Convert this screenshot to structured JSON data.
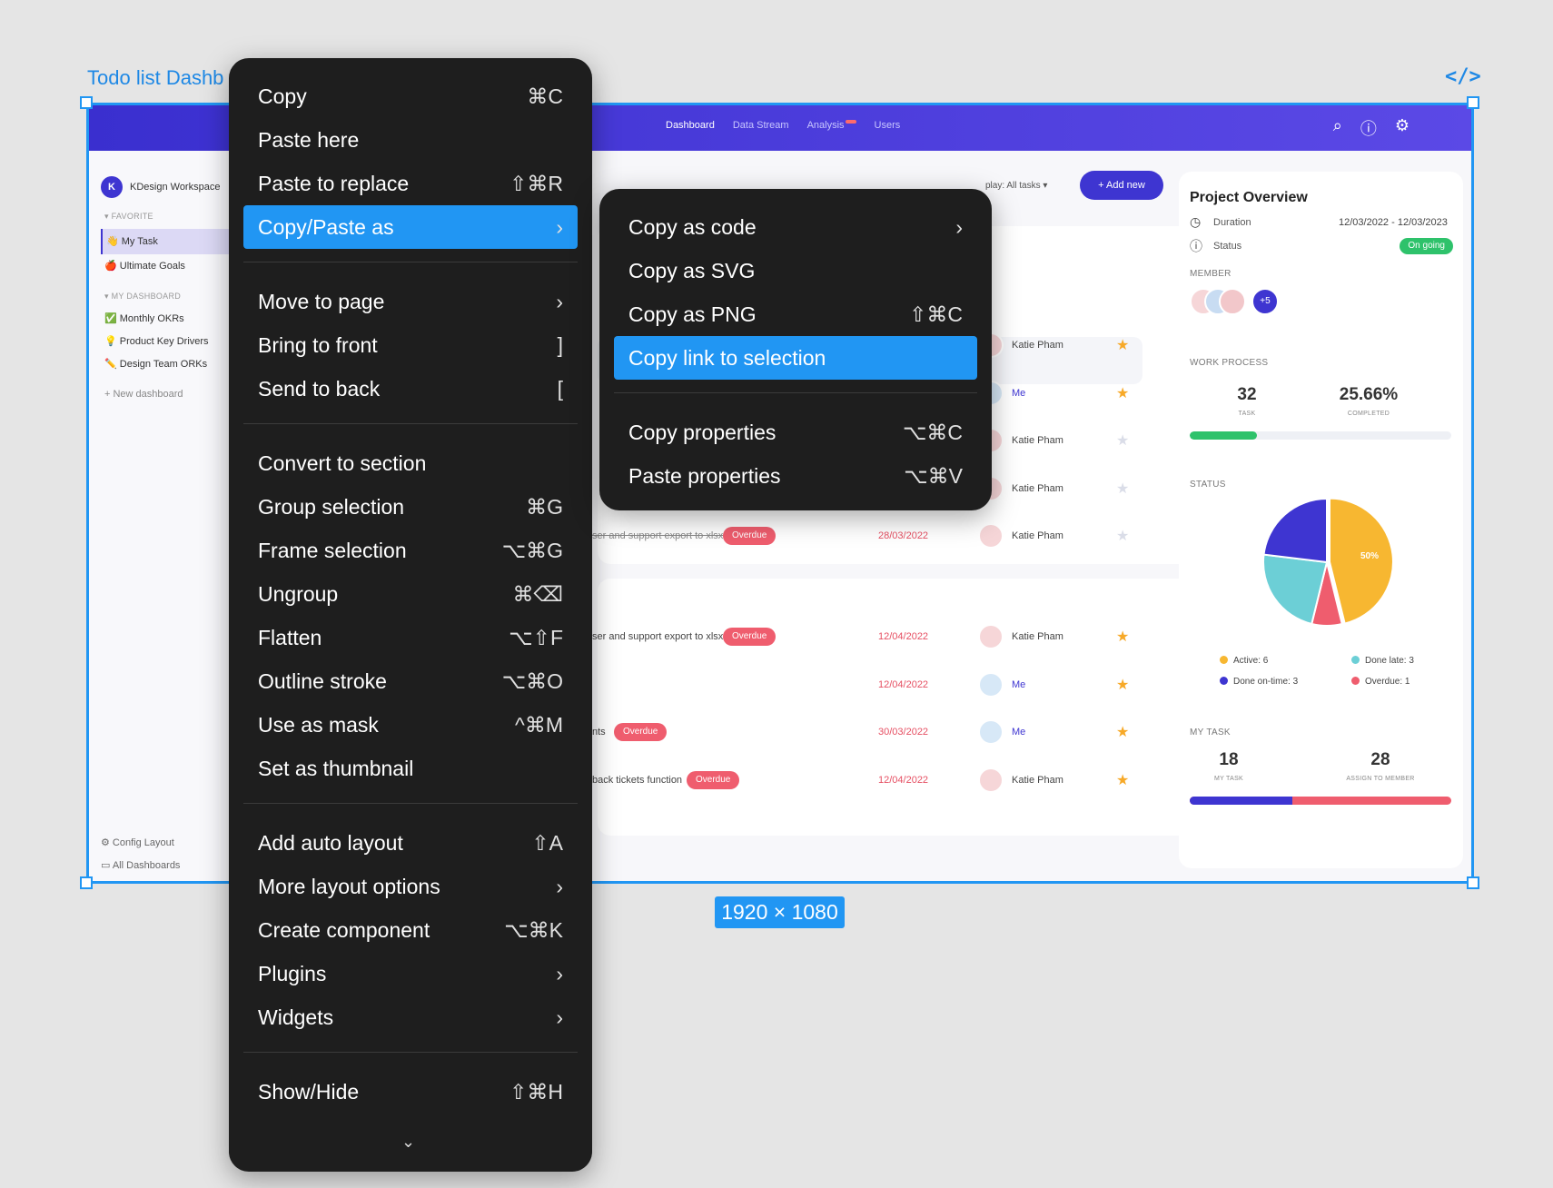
{
  "canvas": {
    "frame_title": "Todo list Dashb",
    "code_icon": "</>",
    "size_label": "1920 × 1080"
  },
  "app": {
    "nav": {
      "dashboard": "Dashboard",
      "data_stream": "Data Stream",
      "analysis": "Analysis",
      "users": "Users"
    },
    "workspace": {
      "initial": "K",
      "name": "KDesign Workspace"
    },
    "sidebar": {
      "favorite_title": "FAVORITE",
      "my_task": "👋 My Task",
      "ultimate_goals": "🍎 Ultimate Goals",
      "my_dashboard_title": "MY DASHBOARD",
      "monthly_okrs": "✅ Monthly OKRs",
      "product_key_drivers": "💡 Product Key Drivers",
      "design_team_orks": "✏️ Design Team ORKs",
      "new_dashboard": "+  New dashboard",
      "config_layout": "⚙  Config Layout",
      "all_dashboards": "▭  All Dashboards"
    },
    "toolbar": {
      "display_filter": "play: All tasks ▾",
      "add_new": "+  Add new"
    },
    "tasks_top": [
      {
        "name": "",
        "person": "Katie Pham",
        "star": "on"
      },
      {
        "name": "",
        "person": "Me",
        "star": "on"
      },
      {
        "name": "",
        "person": "Katie Pham",
        "star": "off"
      },
      {
        "name": "",
        "person": "Katie Pham",
        "star": "off"
      },
      {
        "name": "ser and support export to xlsx",
        "badge": "Overdue",
        "date": "28/03/2022",
        "person": "Katie Pham",
        "star": "off"
      }
    ],
    "tasks_bottom": [
      {
        "name": "ser and support export to xlsx",
        "badge": "Overdue",
        "date": "12/04/2022",
        "person": "Katie Pham"
      },
      {
        "name": "",
        "date": "12/04/2022",
        "person": "Me"
      },
      {
        "name": "nts",
        "badge": "Overdue",
        "date": "30/03/2022",
        "person": "Me"
      },
      {
        "name": "back tickets function",
        "badge": "Overdue",
        "date": "12/04/2022",
        "person": "Katie Pham"
      }
    ],
    "overview": {
      "title": "Project Overview",
      "duration_label": "Duration",
      "duration_value": "12/03/2022 - 12/03/2023",
      "status_label": "Status",
      "status_value": "On going",
      "member_caption": "MEMBER",
      "member_more": "+5",
      "work_process_caption": "WORK PROCESS",
      "task_count": "32",
      "task_caption": "TASK",
      "completed_pct": "25.66%",
      "completed_caption": "COMPLETED",
      "completed_fraction": 0.2566,
      "status_caption": "STATUS",
      "pie_label": "50%",
      "my_task_caption": "MY TASK",
      "my_task_count": "18",
      "my_task_sub": "MY TASK",
      "assign_count": "28",
      "assign_sub": "ASSIGN TO MEMBER"
    },
    "chart_data": {
      "type": "pie",
      "title": "STATUS",
      "categories": [
        "Active",
        "Done late",
        "Done on-time",
        "Overdue"
      ],
      "values": [
        6,
        3,
        3,
        1
      ],
      "legend": [
        "Active: 6",
        "Done late: 3",
        "Done on-time: 3",
        "Overdue: 1"
      ],
      "colors": [
        "#f7b731",
        "#6ccfd6",
        "#3e35d1",
        "#ef5d6e"
      ]
    }
  },
  "context_menu": {
    "items": [
      {
        "label": "Copy",
        "shortcut": "⌘C"
      },
      {
        "label": "Paste here",
        "shortcut": ""
      },
      {
        "label": "Paste to replace",
        "shortcut": "⇧⌘R"
      },
      {
        "label": "Copy/Paste as",
        "shortcut": "›"
      },
      {
        "label": "Move to page",
        "shortcut": "›"
      },
      {
        "label": "Bring to front",
        "shortcut": "]"
      },
      {
        "label": "Send to back",
        "shortcut": "["
      },
      {
        "label": "Convert to section",
        "shortcut": ""
      },
      {
        "label": "Group selection",
        "shortcut": "⌘G"
      },
      {
        "label": "Frame selection",
        "shortcut": "⌥⌘G"
      },
      {
        "label": "Ungroup",
        "shortcut": "⌘⌫"
      },
      {
        "label": "Flatten",
        "shortcut": "⌥⇧F"
      },
      {
        "label": "Outline stroke",
        "shortcut": "⌥⌘O"
      },
      {
        "label": "Use as mask",
        "shortcut": "^⌘M"
      },
      {
        "label": "Set as thumbnail",
        "shortcut": ""
      },
      {
        "label": "Add auto layout",
        "shortcut": "⇧A"
      },
      {
        "label": "More layout options",
        "shortcut": "›"
      },
      {
        "label": "Create component",
        "shortcut": "⌥⌘K"
      },
      {
        "label": "Plugins",
        "shortcut": "›"
      },
      {
        "label": "Widgets",
        "shortcut": "›"
      },
      {
        "label": "Show/Hide",
        "shortcut": "⇧⌘H"
      }
    ],
    "more_indicator": "⌄"
  },
  "submenu": {
    "items": [
      {
        "label": "Copy as code",
        "shortcut": "›"
      },
      {
        "label": "Copy as SVG",
        "shortcut": ""
      },
      {
        "label": "Copy as PNG",
        "shortcut": "⇧⌘C"
      },
      {
        "label": "Copy link to selection",
        "shortcut": ""
      },
      {
        "label": "Copy properties",
        "shortcut": "⌥⌘C"
      },
      {
        "label": "Paste properties",
        "shortcut": "⌥⌘V"
      }
    ]
  }
}
